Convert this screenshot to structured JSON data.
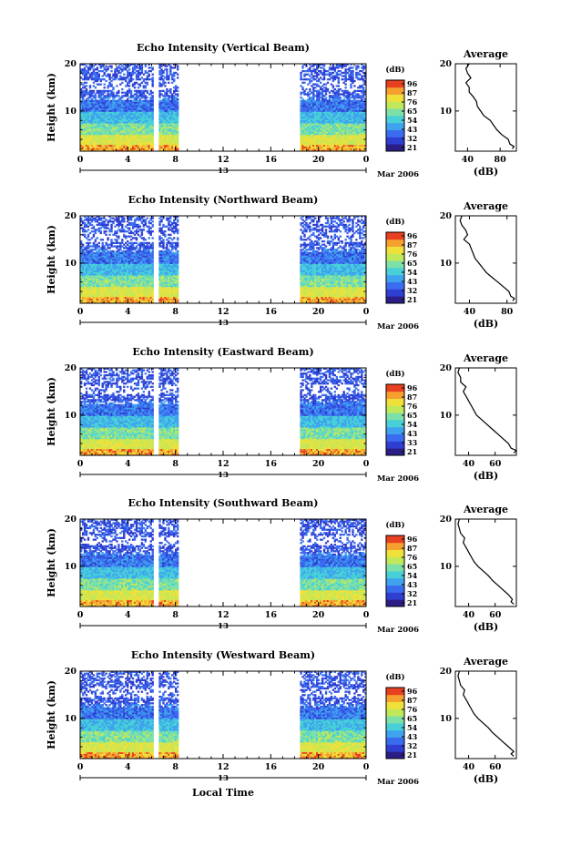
{
  "colors": {
    "scale": [
      "#2a1d86",
      "#2f3fd0",
      "#3b6cf0",
      "#3fa3ee",
      "#48d0d8",
      "#7ce0a8",
      "#c0e85a",
      "#f0e03a",
      "#f6a030",
      "#e84020"
    ],
    "frame": "#000000",
    "background": "#ffffff"
  },
  "shared": {
    "date_label": "Mar 2006",
    "center_date": "13",
    "x_axis_label": "Local Time",
    "y_axis_label": "Height (km)",
    "avg_title": "Average",
    "avg_xlabel": "(dB)",
    "colorbar_unit": "(dB)"
  },
  "chart_data": [
    {
      "type": "heatmap",
      "title": "Echo Intensity (Vertical Beam)",
      "xlabel": "",
      "ylabel": "Height (km)",
      "x_ticks": [
        "0",
        "4",
        "8",
        "12",
        "16",
        "20",
        "0"
      ],
      "y_ticks": [
        "10",
        "20"
      ],
      "xlim": [
        0,
        24
      ],
      "ylim": [
        1.5,
        20
      ],
      "colorbar_ticks": [
        "96",
        "87",
        "76",
        "65",
        "54",
        "43",
        "32",
        "21"
      ],
      "data_gaps_hours": [
        [
          6.1,
          6.6
        ],
        [
          8.3,
          18.2
        ]
      ],
      "average_profile": {
        "xlabel": "(dB)",
        "x_ticks": [
          "40",
          "80"
        ],
        "xlim": [
          25,
          100
        ],
        "heights": [
          2,
          2.5,
          3,
          4,
          5,
          6,
          7,
          8,
          9,
          10,
          11,
          12,
          13,
          14,
          15,
          16,
          17,
          18,
          19,
          20
        ],
        "values": [
          95,
          97,
          92,
          90,
          82,
          76,
          72,
          68,
          60,
          56,
          52,
          51,
          47,
          42,
          42,
          38,
          44,
          40,
          38,
          42
        ]
      }
    },
    {
      "type": "heatmap",
      "title": "Echo Intensity (Northward Beam)",
      "xlabel": "",
      "ylabel": "Height (km)",
      "x_ticks": [
        "0",
        "4",
        "8",
        "12",
        "16",
        "20",
        "0"
      ],
      "y_ticks": [
        "10",
        "20"
      ],
      "xlim": [
        0,
        24
      ],
      "ylim": [
        1.5,
        20
      ],
      "colorbar_ticks": [
        "96",
        "87",
        "76",
        "65",
        "54",
        "43",
        "32",
        "21"
      ],
      "data_gaps_hours": [
        [
          6.1,
          6.6
        ],
        [
          8.3,
          18.2
        ]
      ],
      "average_profile": {
        "xlabel": "(dB)",
        "x_ticks": [
          "40",
          "80"
        ],
        "xlim": [
          25,
          90
        ],
        "heights": [
          2,
          2.5,
          3,
          4,
          5,
          6,
          7,
          8,
          9,
          10,
          11,
          12,
          13,
          14,
          15,
          16,
          17,
          18,
          19,
          20
        ],
        "values": [
          86,
          88,
          84,
          82,
          76,
          70,
          64,
          58,
          54,
          50,
          46,
          44,
          42,
          40,
          34,
          38,
          36,
          32,
          30,
          32
        ]
      }
    },
    {
      "type": "heatmap",
      "title": "Echo Intensity (Eastward Beam)",
      "xlabel": "",
      "ylabel": "Height (km)",
      "x_ticks": [
        "0",
        "4",
        "8",
        "12",
        "16",
        "20",
        "0"
      ],
      "y_ticks": [
        "10",
        "20"
      ],
      "xlim": [
        0,
        24
      ],
      "ylim": [
        1.5,
        20
      ],
      "colorbar_ticks": [
        "96",
        "87",
        "76",
        "65",
        "54",
        "43",
        "33",
        "21"
      ],
      "data_gaps_hours": [
        [
          6.1,
          6.6
        ],
        [
          8.3,
          18.2
        ]
      ],
      "average_profile": {
        "xlabel": "(dB)",
        "x_ticks": [
          "40",
          "60"
        ],
        "xlim": [
          30,
          76
        ],
        "heights": [
          2,
          2.5,
          3,
          4,
          5,
          6,
          7,
          8,
          9,
          10,
          11,
          12,
          13,
          14,
          15,
          16,
          17,
          18,
          19,
          20
        ],
        "values": [
          74,
          76,
          72,
          70,
          66,
          62,
          58,
          54,
          50,
          46,
          44,
          42,
          40,
          38,
          36,
          38,
          34,
          34,
          32,
          33
        ]
      }
    },
    {
      "type": "heatmap",
      "title": "Echo Intensity (Southward Beam)",
      "xlabel": "",
      "ylabel": "Height (km)",
      "x_ticks": [
        "0",
        "4",
        "8",
        "12",
        "16",
        "20",
        "0"
      ],
      "y_ticks": [
        "10",
        "20"
      ],
      "xlim": [
        0,
        24
      ],
      "ylim": [
        1.5,
        20
      ],
      "colorbar_ticks": [
        "96",
        "87",
        "76",
        "65",
        "54",
        "43",
        "32",
        "21"
      ],
      "data_gaps_hours": [
        [
          6.1,
          6.6
        ],
        [
          8.3,
          18.2
        ]
      ],
      "average_profile": {
        "xlabel": "(dB)",
        "x_ticks": [
          "40",
          "60"
        ],
        "xlim": [
          30,
          76
        ],
        "heights": [
          2,
          2.5,
          3,
          4,
          5,
          6,
          7,
          8,
          9,
          10,
          11,
          12,
          13,
          14,
          15,
          16,
          17,
          18,
          19,
          20
        ],
        "values": [
          74,
          72,
          73,
          70,
          66,
          62,
          58,
          55,
          51,
          47,
          44,
          42,
          40,
          38,
          36,
          37,
          34,
          33,
          32,
          33
        ]
      }
    },
    {
      "type": "heatmap",
      "title": "Echo Intensity (Westward Beam)",
      "xlabel": "Local Time",
      "ylabel": "Height (km)",
      "x_ticks": [
        "0",
        "4",
        "8",
        "12",
        "16",
        "20",
        "0"
      ],
      "y_ticks": [
        "10",
        "20"
      ],
      "xlim": [
        0,
        24
      ],
      "ylim": [
        1.5,
        20
      ],
      "colorbar_ticks": [
        "96",
        "87",
        "76",
        "65",
        "54",
        "43",
        "32",
        "21"
      ],
      "data_gaps_hours": [
        [
          6.1,
          6.6
        ],
        [
          8.3,
          18.2
        ]
      ],
      "average_profile": {
        "xlabel": "(dB)",
        "x_ticks": [
          "40",
          "60"
        ],
        "xlim": [
          30,
          76
        ],
        "heights": [
          2,
          2.5,
          3,
          4,
          5,
          6,
          7,
          8,
          9,
          10,
          11,
          12,
          13,
          14,
          15,
          16,
          17,
          18,
          19,
          20
        ],
        "values": [
          74,
          72,
          74,
          70,
          66,
          62,
          58,
          55,
          51,
          47,
          44,
          42,
          40,
          38,
          36,
          37,
          34,
          33,
          32,
          33
        ]
      }
    }
  ]
}
